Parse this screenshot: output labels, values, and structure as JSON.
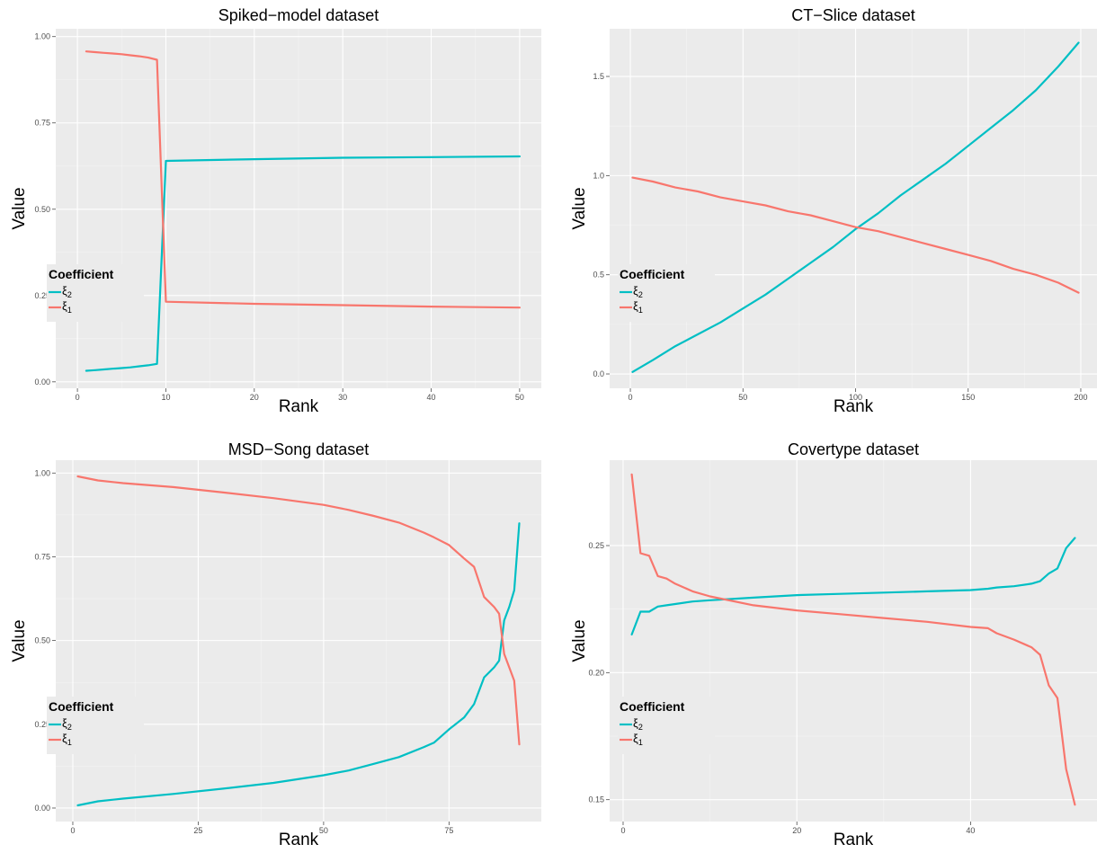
{
  "legend": {
    "title": "Coefficient",
    "items": [
      {
        "symbol": "ξ",
        "sub": "2",
        "color": "#00BFC4"
      },
      {
        "symbol": "ξ",
        "sub": "1",
        "color": "#F8766D"
      }
    ]
  },
  "colors": {
    "panel": "#EBEBEB",
    "xi2": "#00BFC4",
    "xi1": "#F8766D"
  },
  "chart_data": [
    {
      "type": "line",
      "title": "Spiked−model dataset",
      "xlabel": "Rank",
      "ylabel": "Value",
      "xlim": [
        -2.45,
        52.45
      ],
      "ylim": [
        -0.0187,
        1.0227
      ],
      "xticks": [
        0,
        10,
        20,
        30,
        40,
        50
      ],
      "yticks": [
        0.0,
        0.25,
        0.5,
        0.75,
        1.0
      ],
      "ytick_labels": [
        "0.00",
        "0.25",
        "0.50",
        "0.75",
        "1.00"
      ],
      "grid": true,
      "legend_position": "left",
      "series": [
        {
          "key": "xi2",
          "x": [
            1,
            2,
            3,
            4,
            5,
            6,
            7,
            8,
            9,
            10,
            20,
            30,
            40,
            50
          ],
          "values": [
            0.032,
            0.034,
            0.036,
            0.038,
            0.04,
            0.042,
            0.045,
            0.048,
            0.052,
            0.64,
            0.645,
            0.649,
            0.651,
            0.653
          ]
        },
        {
          "key": "xi1",
          "x": [
            1,
            2,
            3,
            4,
            5,
            6,
            7,
            8,
            9,
            10,
            20,
            30,
            40,
            50
          ],
          "values": [
            0.957,
            0.955,
            0.953,
            0.951,
            0.949,
            0.946,
            0.943,
            0.939,
            0.933,
            0.232,
            0.226,
            0.222,
            0.218,
            0.215
          ]
        }
      ]
    },
    {
      "type": "line",
      "title": "CT−Slice dataset",
      "xlabel": "Rank",
      "ylabel": "Value",
      "xlim": [
        -9.2,
        207.2
      ],
      "ylim": [
        -0.0724,
        1.7404
      ],
      "xticks": [
        0,
        50,
        100,
        150,
        200
      ],
      "yticks": [
        0.0,
        0.5,
        1.0,
        1.5
      ],
      "ytick_labels": [
        "0.0",
        "0.5",
        "1.0",
        "1.5"
      ],
      "grid": true,
      "legend_position": "left",
      "series": [
        {
          "key": "xi2",
          "x": [
            1,
            10,
            20,
            30,
            40,
            50,
            60,
            70,
            80,
            90,
            100,
            110,
            120,
            130,
            140,
            150,
            160,
            170,
            180,
            190,
            199
          ],
          "values": [
            0.01,
            0.07,
            0.14,
            0.2,
            0.26,
            0.33,
            0.4,
            0.48,
            0.56,
            0.64,
            0.73,
            0.81,
            0.9,
            0.98,
            1.06,
            1.15,
            1.24,
            1.33,
            1.43,
            1.55,
            1.67
          ]
        },
        {
          "key": "xi1",
          "x": [
            1,
            10,
            20,
            30,
            40,
            50,
            60,
            70,
            80,
            90,
            100,
            110,
            120,
            130,
            140,
            150,
            160,
            170,
            180,
            190,
            199
          ],
          "values": [
            0.99,
            0.97,
            0.94,
            0.92,
            0.89,
            0.87,
            0.85,
            0.82,
            0.8,
            0.77,
            0.74,
            0.72,
            0.69,
            0.66,
            0.63,
            0.6,
            0.57,
            0.53,
            0.5,
            0.46,
            0.41
          ]
        }
      ]
    },
    {
      "type": "line",
      "title": "MSD−Song dataset",
      "xlabel": "Rank",
      "ylabel": "Value",
      "xlim": [
        -3.4,
        93.4
      ],
      "ylim": [
        -0.0403,
        1.0383
      ],
      "xticks": [
        0,
        25,
        50,
        75
      ],
      "yticks": [
        0.0,
        0.25,
        0.5,
        0.75,
        1.0
      ],
      "ytick_labels": [
        "0.00",
        "0.25",
        "0.50",
        "0.75",
        "1.00"
      ],
      "grid": true,
      "legend_position": "left",
      "series": [
        {
          "key": "xi2",
          "x": [
            1,
            5,
            10,
            20,
            30,
            40,
            50,
            55,
            60,
            65,
            70,
            72,
            75,
            78,
            80,
            82,
            84,
            85,
            86,
            87,
            88,
            89
          ],
          "values": [
            0.008,
            0.02,
            0.028,
            0.042,
            0.058,
            0.075,
            0.098,
            0.112,
            0.132,
            0.152,
            0.182,
            0.195,
            0.235,
            0.27,
            0.31,
            0.39,
            0.42,
            0.44,
            0.56,
            0.6,
            0.65,
            0.85
          ]
        },
        {
          "key": "xi1",
          "x": [
            1,
            5,
            10,
            20,
            30,
            40,
            50,
            55,
            60,
            65,
            70,
            72,
            75,
            78,
            80,
            82,
            84,
            85,
            86,
            87,
            88,
            89
          ],
          "values": [
            0.99,
            0.978,
            0.97,
            0.958,
            0.942,
            0.925,
            0.905,
            0.89,
            0.872,
            0.852,
            0.822,
            0.808,
            0.785,
            0.745,
            0.72,
            0.63,
            0.6,
            0.58,
            0.46,
            0.42,
            0.38,
            0.19
          ]
        }
      ]
    },
    {
      "type": "line",
      "title": "Covertype dataset",
      "xlabel": "Rank",
      "ylabel": "Value",
      "xlim": [
        -1.55,
        54.55
      ],
      "ylim": [
        0.1414,
        0.2836
      ],
      "xticks": [
        0,
        20,
        40
      ],
      "yticks": [
        0.15,
        0.2,
        0.25
      ],
      "ytick_labels": [
        "0.15",
        "0.20",
        "0.25"
      ],
      "grid": true,
      "legend_position": "left",
      "series": [
        {
          "key": "xi2",
          "x": [
            1,
            2,
            3,
            4,
            5,
            6,
            8,
            10,
            15,
            20,
            25,
            30,
            35,
            40,
            42,
            43,
            45,
            47,
            48,
            49,
            50,
            51,
            52
          ],
          "values": [
            0.215,
            0.224,
            0.224,
            0.226,
            0.2265,
            0.227,
            0.228,
            0.2285,
            0.2295,
            0.2305,
            0.231,
            0.2315,
            0.232,
            0.2325,
            0.233,
            0.2335,
            0.234,
            0.235,
            0.236,
            0.239,
            0.241,
            0.249,
            0.253
          ]
        },
        {
          "key": "xi1",
          "x": [
            1,
            2,
            3,
            4,
            5,
            6,
            8,
            10,
            15,
            20,
            25,
            30,
            35,
            40,
            42,
            43,
            45,
            47,
            48,
            49,
            50,
            51,
            52
          ],
          "values": [
            0.278,
            0.247,
            0.246,
            0.238,
            0.237,
            0.235,
            0.232,
            0.23,
            0.2265,
            0.2245,
            0.223,
            0.2215,
            0.22,
            0.218,
            0.2175,
            0.2155,
            0.213,
            0.21,
            0.207,
            0.195,
            0.19,
            0.162,
            0.148
          ]
        }
      ]
    }
  ]
}
